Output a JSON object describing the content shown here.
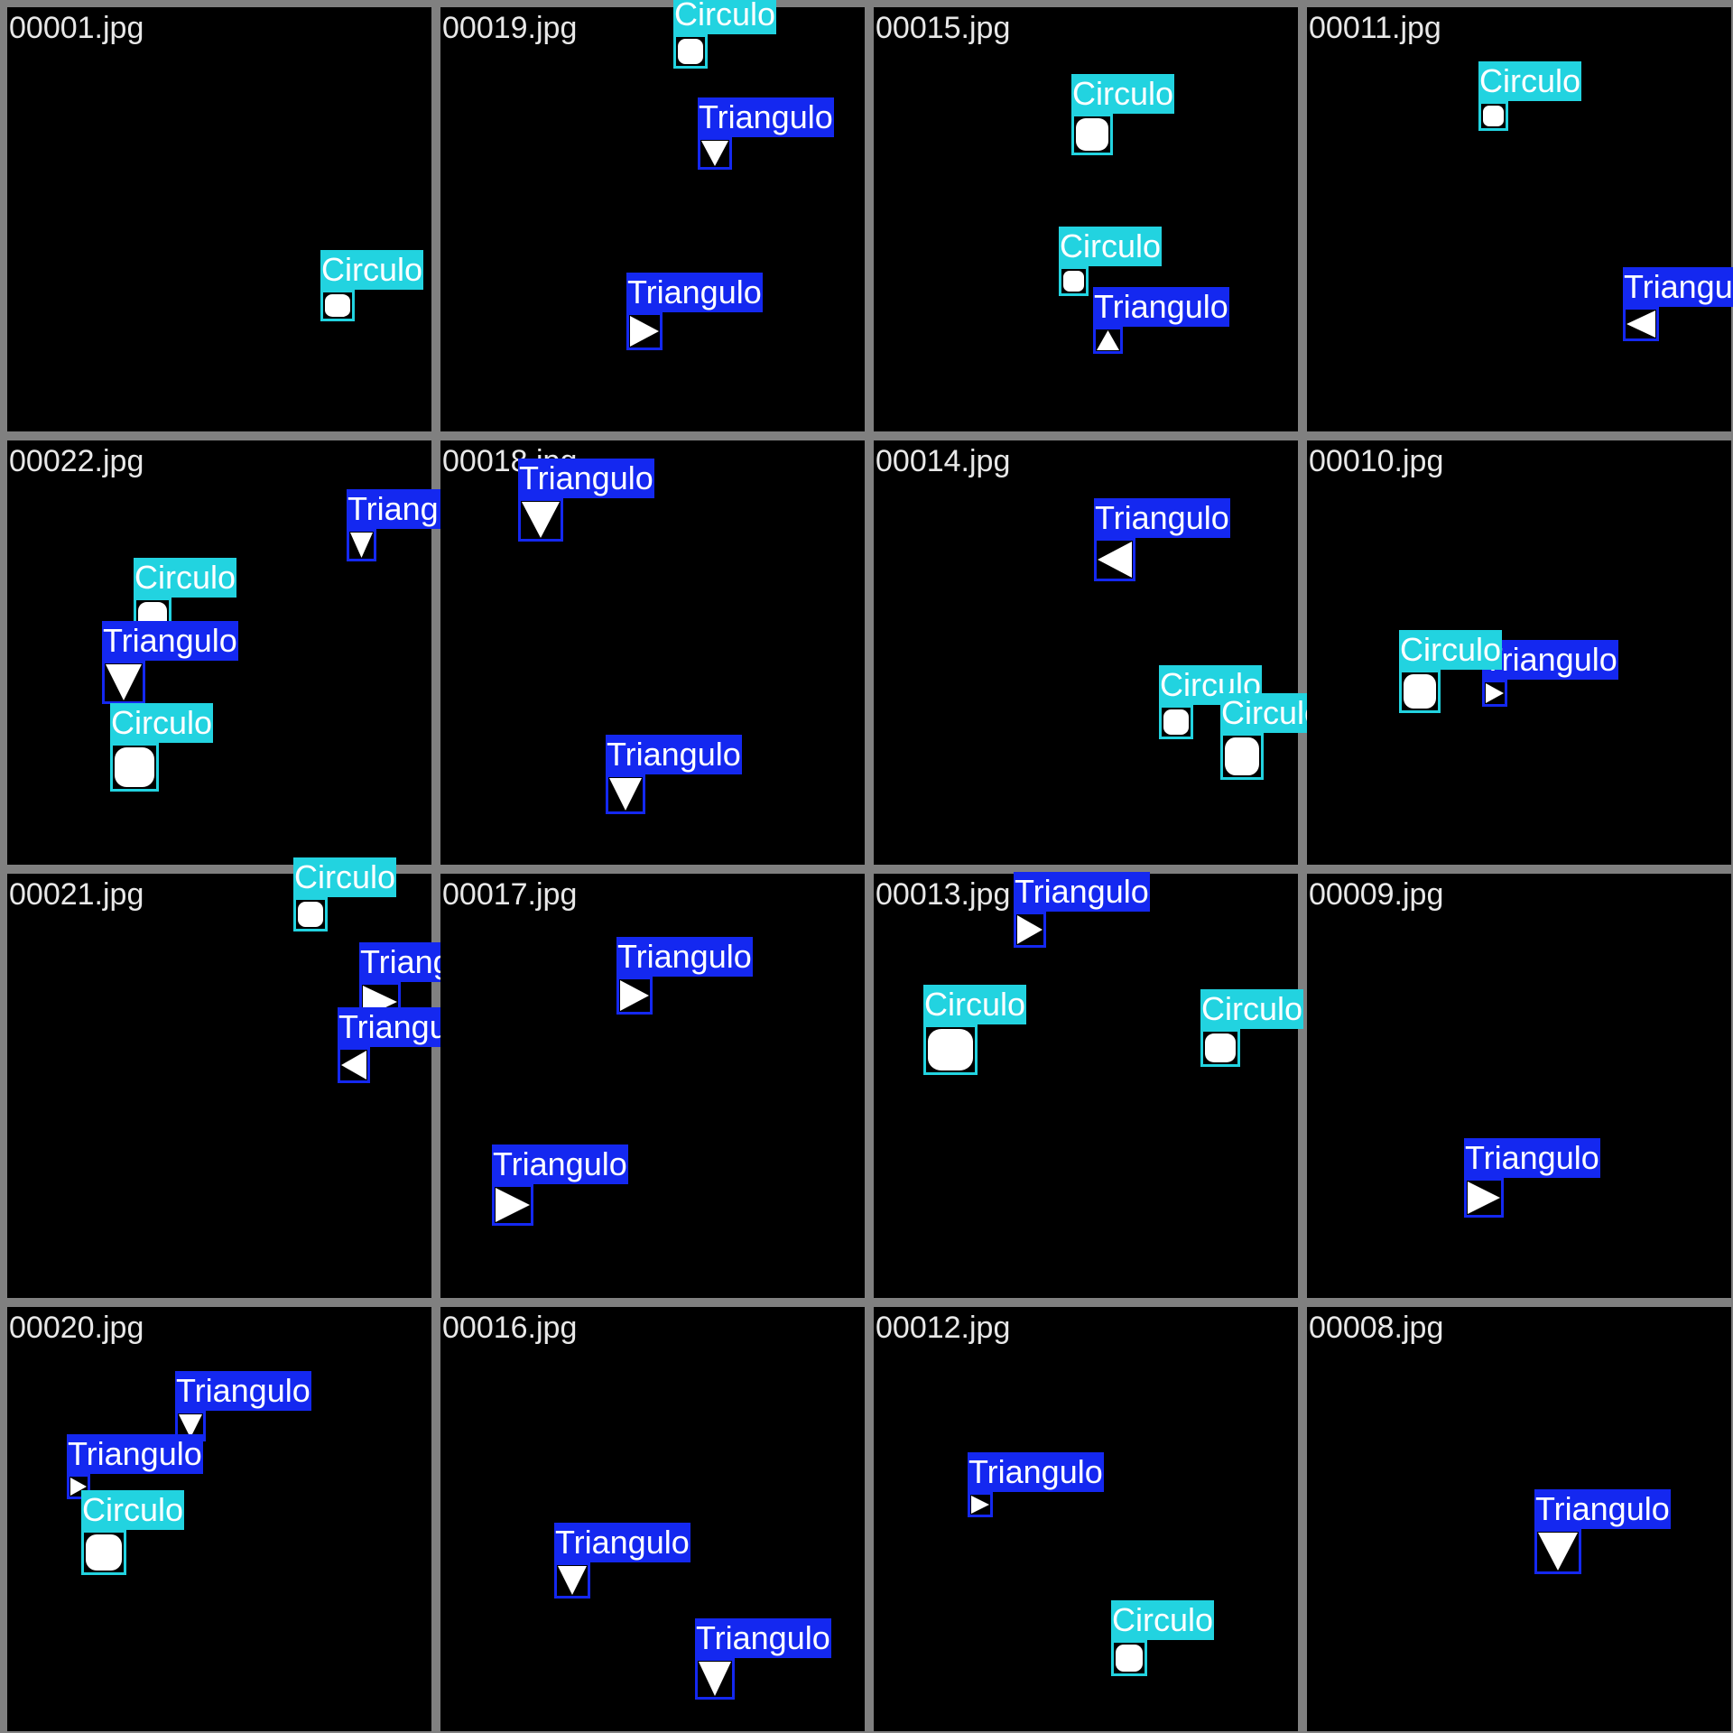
{
  "colors": {
    "background": "#808080",
    "tile": "#000000",
    "Circulo": "#22d3e0",
    "Triangulo": "#1428f0",
    "shape": "#ffffff"
  },
  "tiles": [
    {
      "file": "00001.jpg",
      "dets": [
        {
          "cls": "Circulo",
          "dir": "circle"
        }
      ]
    },
    {
      "file": "00019.jpg",
      "dets": [
        {
          "cls": "Circulo",
          "dir": "circle"
        },
        {
          "cls": "Triangulo",
          "dir": "down"
        },
        {
          "cls": "Triangulo",
          "dir": "right"
        }
      ]
    },
    {
      "file": "00015.jpg",
      "dets": [
        {
          "cls": "Circulo",
          "dir": "circle"
        },
        {
          "cls": "Circulo",
          "dir": "circle"
        },
        {
          "cls": "Triangulo",
          "dir": "up"
        }
      ]
    },
    {
      "file": "00011.jpg",
      "dets": [
        {
          "cls": "Circulo",
          "dir": "circle"
        },
        {
          "cls": "Triangulo",
          "dir": "left"
        }
      ]
    },
    {
      "file": "00022.jpg",
      "dets": [
        {
          "cls": "Triangulo",
          "dir": "down"
        },
        {
          "cls": "Circulo",
          "dir": "circle"
        },
        {
          "cls": "Triangulo",
          "dir": "down"
        },
        {
          "cls": "Circulo",
          "dir": "circle"
        }
      ]
    },
    {
      "file": "00018.jpg",
      "dets": [
        {
          "cls": "Triangulo",
          "dir": "down"
        },
        {
          "cls": "Triangulo",
          "dir": "down"
        }
      ]
    },
    {
      "file": "00014.jpg",
      "dets": [
        {
          "cls": "Triangulo",
          "dir": "left"
        },
        {
          "cls": "Circulo",
          "dir": "circle"
        },
        {
          "cls": "Circulo",
          "dir": "circle"
        }
      ]
    },
    {
      "file": "00010.jpg",
      "dets": [
        {
          "cls": "Triangulo",
          "dir": "right"
        },
        {
          "cls": "Circulo",
          "dir": "circle"
        }
      ]
    },
    {
      "file": "00021.jpg",
      "dets": [
        {
          "cls": "Circulo",
          "dir": "circle"
        },
        {
          "cls": "Triangulo",
          "dir": "right"
        },
        {
          "cls": "Triangulo",
          "dir": "left"
        }
      ]
    },
    {
      "file": "00017.jpg",
      "dets": [
        {
          "cls": "Triangulo",
          "dir": "right"
        },
        {
          "cls": "Triangulo",
          "dir": "right"
        }
      ]
    },
    {
      "file": "00013.jpg",
      "dets": [
        {
          "cls": "Triangulo",
          "dir": "right"
        },
        {
          "cls": "Circulo",
          "dir": "circle"
        },
        {
          "cls": "Circulo",
          "dir": "circle"
        }
      ]
    },
    {
      "file": "00009.jpg",
      "dets": [
        {
          "cls": "Triangulo",
          "dir": "right"
        }
      ]
    },
    {
      "file": "00020.jpg",
      "dets": [
        {
          "cls": "Triangulo",
          "dir": "down"
        },
        {
          "cls": "Triangulo",
          "dir": "right"
        },
        {
          "cls": "Circulo",
          "dir": "circle"
        }
      ]
    },
    {
      "file": "00016.jpg",
      "dets": [
        {
          "cls": "Triangulo",
          "dir": "down"
        },
        {
          "cls": "Triangulo",
          "dir": "down"
        }
      ]
    },
    {
      "file": "00012.jpg",
      "dets": [
        {
          "cls": "Triangulo",
          "dir": "right"
        },
        {
          "cls": "Circulo",
          "dir": "circle"
        }
      ]
    },
    {
      "file": "00008.jpg",
      "dets": [
        {
          "cls": "Triangulo",
          "dir": "down"
        }
      ]
    }
  ]
}
